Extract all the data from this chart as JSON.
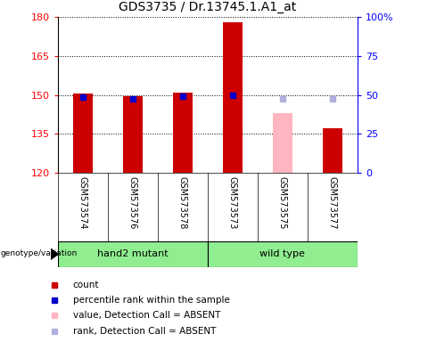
{
  "title": "GDS3735 / Dr.13745.1.A1_at",
  "samples": [
    "GSM573574",
    "GSM573576",
    "GSM573578",
    "GSM573573",
    "GSM573575",
    "GSM573577"
  ],
  "ylim_left": [
    120,
    180
  ],
  "ylim_right": [
    0,
    100
  ],
  "yticks_left": [
    120,
    135,
    150,
    165,
    180
  ],
  "yticks_right": [
    0,
    25,
    50,
    75,
    100
  ],
  "yticklabels_right": [
    "0",
    "25",
    "50",
    "75",
    "100%"
  ],
  "bar_width": 0.4,
  "count_values": [
    150.5,
    149.5,
    151.0,
    178.0,
    null,
    137.0
  ],
  "rank_values": [
    149.0,
    148.5,
    149.5,
    150.0,
    null,
    null
  ],
  "absent_count_values": [
    null,
    null,
    null,
    null,
    143.0,
    null
  ],
  "absent_rank_values": [
    null,
    null,
    null,
    null,
    148.5,
    148.5
  ],
  "count_color": "#cc0000",
  "rank_color": "#0000cc",
  "absent_count_color": "#ffb6c1",
  "absent_rank_color": "#b0b0e0",
  "base_value": 120,
  "group1_label": "hand2 mutant",
  "group2_label": "wild type",
  "group_color": "#90ee90",
  "genotype_label": "genotype/variation",
  "legend_items": [
    "count",
    "percentile rank within the sample",
    "value, Detection Call = ABSENT",
    "rank, Detection Call = ABSENT"
  ],
  "legend_colors": [
    "#cc0000",
    "#0000cc",
    "#ffb6c1",
    "#b0b0e0"
  ],
  "plot_bg_color": "#ffffff",
  "label_bg_color": "#d3d3d3",
  "title_fontsize": 10,
  "tick_fontsize": 8,
  "sample_fontsize": 7,
  "group_fontsize": 8,
  "legend_fontsize": 7.5
}
